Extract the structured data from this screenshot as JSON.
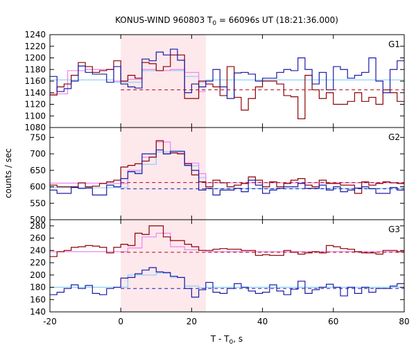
{
  "chart_data": {
    "type": "line",
    "title": "KONUS-WIND 960803 T₀ = 66096s UT (18:21:36.000)",
    "title_parts": {
      "main": "KONUS-WIND 960803 T",
      "sub": "0",
      "rest": " = 66096s UT (18:21:36.000)"
    },
    "xlabel_parts": {
      "main": "T - T",
      "sub": "0",
      "rest": ", s"
    },
    "ylabel": "counts / sec",
    "xlim": [
      -20,
      80
    ],
    "xticks": [
      -20,
      0,
      20,
      40,
      60,
      80
    ],
    "shaded_interval": [
      0,
      24
    ],
    "colors": {
      "red": "#8b0000",
      "blue": "#1a1aa6",
      "pink": "#ee82ee",
      "cyan": "#87cefa",
      "shade": "#fde8ec",
      "dashed_red": "#b0001a",
      "dashed_blue": "#1a1aa6"
    },
    "bin_edges": [
      -20,
      -18,
      -16,
      -14,
      -12,
      -10,
      -8,
      -6,
      -4,
      -2,
      0,
      2,
      4,
      6,
      8,
      10,
      12,
      14,
      16,
      18,
      20,
      22,
      24,
      26,
      28,
      30,
      32,
      34,
      36,
      38,
      40,
      42,
      44,
      46,
      48,
      50,
      52,
      54,
      56,
      58,
      60,
      62,
      64,
      66,
      68,
      70,
      72,
      74,
      76,
      78,
      80
    ],
    "panels": [
      {
        "label": "G1",
        "ylim": [
          1080,
          1240
        ],
        "yticks": [
          1080,
          1100,
          1120,
          1140,
          1160,
          1180,
          1200,
          1220,
          1240
        ],
        "background_level": 1145,
        "fit_level": 1162,
        "series": [
          {
            "name": "",
            "color": "red",
            "values": [
              1136,
              1150,
              1155,
              1170,
              1192,
              1185,
              1175,
              1178,
              1180,
              1195,
              1160,
              1170,
              1165,
              1192,
              1190,
              1178,
              1185,
              1205,
              1205,
              1130,
              1130,
              1160,
              1155,
              1150,
              1135,
              1185,
              1132,
              1110,
              1130,
              1150,
              1160,
              1160,
              1155,
              1135,
              1133,
              1095,
              1170,
              1145,
              1130,
              1140,
              1120,
              1120,
              1125,
              1140,
              1125,
              1132,
              1120,
              1145,
              1140,
              1125
            ]
          },
          {
            "name": "",
            "color": "blue",
            "values": [
              1168,
              1142,
              1147,
              1160,
              1186,
              1175,
              1172,
              1172,
              1158,
              1185,
              1155,
              1150,
              1148,
              1198,
              1195,
              1210,
              1205,
              1215,
              1196,
              1140,
              1155,
              1150,
              1160,
              1180,
              1150,
              1130,
              1174,
              1175,
              1172,
              1160,
              1165,
              1165,
              1175,
              1180,
              1178,
              1200,
              1180,
              1155,
              1175,
              1145,
              1185,
              1180,
              1165,
              1170,
              1175,
              1200,
              1160,
              1140,
              1180,
              1195
            ]
          },
          {
            "name": "",
            "color": "pink",
            "values": [
              null,
              null,
              null,
              null,
              null,
              null,
              null,
              null,
              null,
              null,
              null,
              null,
              null,
              null,
              null,
              null,
              null,
              null,
              null,
              null,
              null,
              null,
              null,
              null,
              null,
              null,
              null,
              null,
              null,
              null,
              null,
              null,
              null,
              null,
              null,
              null,
              null,
              null,
              null,
              null,
              null,
              null,
              null,
              null,
              null,
              null,
              null,
              null,
              null,
              null
            ],
            "note": ""
          }
        ],
        "pink_steps": [
          [
            -20,
            -15,
            1138
          ],
          [
            -15,
            -10,
            1178
          ],
          [
            -10,
            -2,
            1180
          ],
          [
            -2,
            2,
            1160
          ],
          [
            2,
            6,
            1163
          ],
          [
            6,
            10,
            1180
          ],
          [
            10,
            14,
            1178
          ],
          [
            14,
            18,
            1180
          ],
          [
            18,
            22,
            1175
          ],
          [
            22,
            24,
            1142
          ]
        ],
        "cyan_steps": [
          [
            -20,
            -15,
            1162
          ],
          [
            -15,
            -2,
            1162
          ],
          [
            -2,
            2,
            1158
          ],
          [
            2,
            6,
            1158
          ],
          [
            6,
            10,
            1178
          ],
          [
            10,
            14,
            1178
          ],
          [
            14,
            18,
            1178
          ],
          [
            18,
            22,
            1168
          ],
          [
            22,
            24,
            1158
          ],
          [
            24,
            80,
            1162
          ]
        ]
      },
      {
        "label": "G2",
        "ylim": [
          500,
          780
        ],
        "yticks": [
          500,
          550,
          600,
          650,
          700,
          750
        ],
        "background_level": 613,
        "background_level_2": 594,
        "series": [
          {
            "name": "",
            "color": "red",
            "values": [
              605,
              600,
              600,
              598,
              612,
              600,
              602,
              610,
              615,
              620,
              660,
              665,
              670,
              678,
              690,
              740,
              700,
              703,
              700,
              670,
              636,
              615,
              600,
              620,
              612,
              600,
              605,
              610,
              630,
              620,
              600,
              615,
              600,
              610,
              620,
              625,
              605,
              600,
              620,
              610,
              610,
              605,
              605,
              580,
              615,
              605,
              610,
              615,
              612,
              610
            ]
          },
          {
            "name": "",
            "color": "blue",
            "values": [
              590,
              580,
              580,
              600,
              595,
              596,
              575,
              575,
              605,
              600,
              625,
              646,
              640,
              700,
              700,
              712,
              700,
              708,
              708,
              665,
              650,
              590,
              595,
              575,
              590,
              590,
              595,
              585,
              620,
              605,
              580,
              590,
              595,
              600,
              600,
              610,
              595,
              595,
              605,
              590,
              600,
              585,
              590,
              596,
              600,
              594,
              580,
              580,
              598,
              590
            ]
          }
        ],
        "pink_steps": [
          [
            -20,
            -2,
            611
          ],
          [
            -2,
            2,
            610
          ],
          [
            2,
            6,
            650
          ],
          [
            6,
            10,
            690
          ],
          [
            10,
            14,
            736
          ],
          [
            14,
            18,
            702
          ],
          [
            18,
            22,
            672
          ],
          [
            22,
            24,
            640
          ],
          [
            24,
            80,
            612
          ]
        ],
        "cyan_steps": [
          [
            -20,
            -2,
            597
          ],
          [
            -2,
            2,
            597
          ],
          [
            2,
            6,
            645
          ],
          [
            6,
            10,
            668
          ],
          [
            10,
            14,
            706
          ],
          [
            14,
            18,
            706
          ],
          [
            18,
            22,
            664
          ],
          [
            22,
            24,
            628
          ],
          [
            24,
            80,
            595
          ]
        ]
      },
      {
        "label": "G3",
        "ylim": [
          140,
          290
        ],
        "yticks": [
          140,
          160,
          180,
          200,
          220,
          240,
          260,
          280
        ],
        "background_level": 237,
        "background_level_2": 178,
        "series": [
          {
            "name": "",
            "color": "red",
            "values": [
              230,
              238,
              240,
              245,
              246,
              248,
              247,
              245,
              236,
              245,
              250,
              248,
              268,
              266,
              280,
              280,
              262,
              256,
              256,
              250,
              246,
              240,
              240,
              242,
              243,
              242,
              242,
              240,
              240,
              232,
              233,
              232,
              232,
              240,
              237,
              234,
              236,
              238,
              236,
              248,
              246,
              243,
              242,
              238,
              236,
              236,
              234,
              240,
              240,
              238
            ]
          },
          {
            "name": "",
            "color": "blue",
            "values": [
              168,
              172,
              178,
              184,
              178,
              183,
              170,
              168,
              178,
              180,
              195,
              196,
              202,
              208,
              212,
              205,
              204,
              198,
              196,
              178,
              164,
              176,
              188,
              172,
              170,
              178,
              186,
              180,
              174,
              170,
              172,
              184,
              174,
              168,
              177,
              190,
              170,
              176,
              180,
              185,
              180,
              166,
              180,
              170,
              180,
              172,
              178,
              178,
              182,
              186
            ]
          }
        ],
        "pink_steps": [
          [
            -20,
            -2,
            238
          ],
          [
            -2,
            2,
            238
          ],
          [
            2,
            6,
            244
          ],
          [
            6,
            10,
            262
          ],
          [
            10,
            14,
            268
          ],
          [
            14,
            18,
            246
          ],
          [
            18,
            22,
            241
          ],
          [
            22,
            24,
            240
          ],
          [
            24,
            80,
            238
          ]
        ],
        "cyan_steps": [
          [
            -20,
            -2,
            180
          ],
          [
            -2,
            2,
            180
          ],
          [
            2,
            6,
            200
          ],
          [
            6,
            10,
            200
          ],
          [
            10,
            14,
            203
          ],
          [
            14,
            18,
            196
          ],
          [
            18,
            22,
            182
          ],
          [
            22,
            24,
            179
          ],
          [
            24,
            80,
            180
          ]
        ]
      }
    ]
  }
}
